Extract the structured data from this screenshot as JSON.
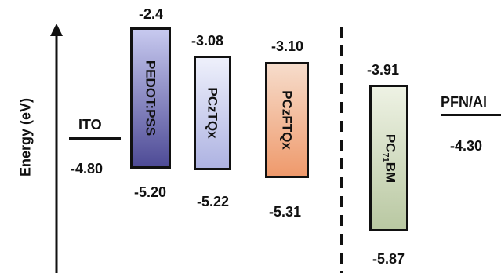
{
  "axis": {
    "label": "Energy (eV)"
  },
  "materials": {
    "ito": {
      "name": "ITO",
      "level": "-4.80"
    },
    "pedot": {
      "name": "PEDOT:PSS",
      "top": "-2.4",
      "bottom": "-5.20",
      "fill_top": "#c7c9ef",
      "fill_bottom": "#4e4b96"
    },
    "pcztqx": {
      "name": "PCzTQx",
      "top": "-3.08",
      "bottom": "-5.22",
      "fill_top": "#eef0fb",
      "fill_bottom": "#aeb3e2"
    },
    "pczftqx": {
      "name": "PCzFTQx",
      "top": "-3.10",
      "bottom": "-5.31",
      "fill_top": "#f6dccb",
      "fill_bottom": "#ef9a6c"
    },
    "pc71bm": {
      "name": "PC",
      "sub": "71",
      "suffix": "BM",
      "top": "-3.91",
      "bottom": "-5.87",
      "fill_top": "#eef2e4",
      "fill_bottom": "#b9c8a2"
    },
    "pfn": {
      "name": "PFN/Al",
      "level": "-4.30"
    }
  }
}
